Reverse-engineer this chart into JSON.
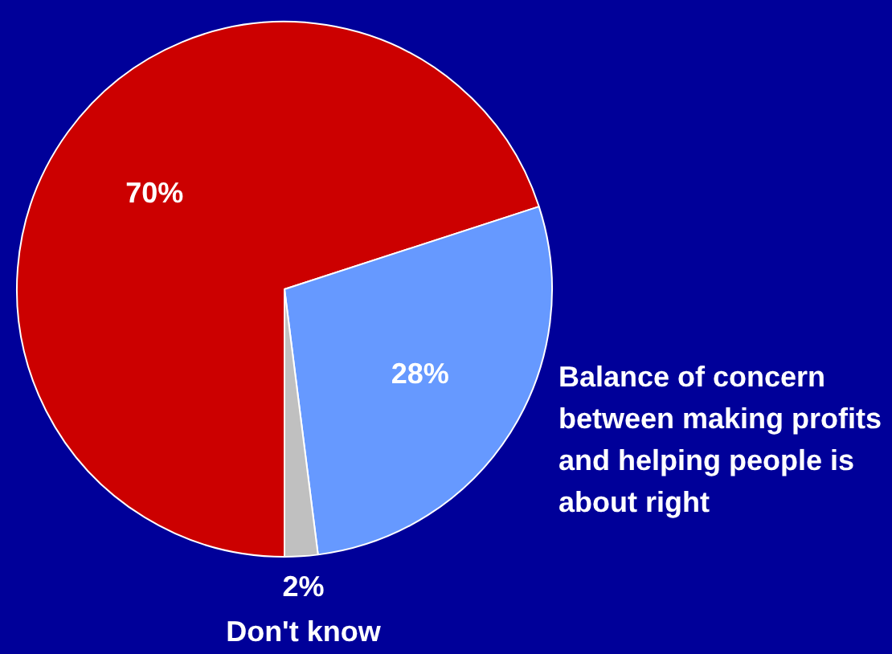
{
  "chart_data": {
    "type": "pie",
    "categories": [
      null,
      "Balance of concern between making profits and helping people is about right",
      "Don't know"
    ],
    "values": [
      70,
      28,
      2
    ],
    "colors": [
      "#cc0000",
      "#6699ff",
      "#c0c0c0"
    ],
    "value_labels": [
      "70%",
      "28%",
      "2%"
    ],
    "legend": false
  }
}
